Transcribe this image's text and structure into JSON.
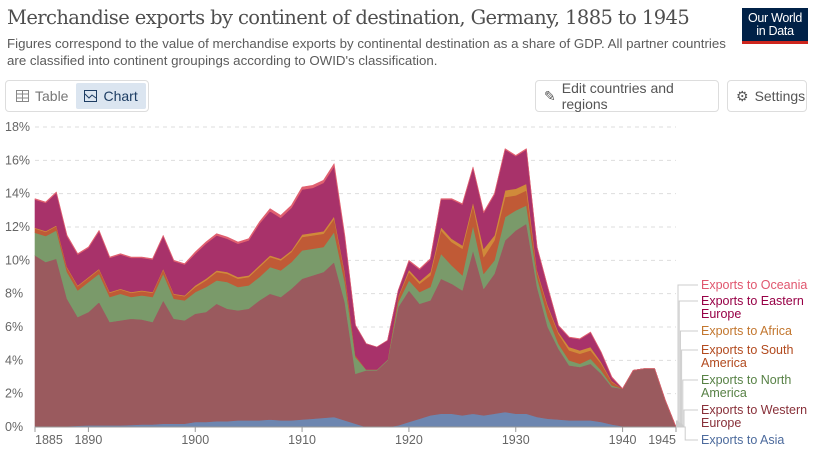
{
  "header": {
    "title": "Merchandise exports by continent of destination, Germany, 1885 to 1945",
    "subtitle": "Figures correspond to the value of merchandise exports by continental destination as a share of GDP. All partner countries are classified into continent groupings according to OWID's classification.",
    "logo_line1": "Our World",
    "logo_line2": "in Data"
  },
  "controls": {
    "table_label": "Table",
    "chart_label": "Chart",
    "edit_label": "Edit countries and regions",
    "settings_label": "Settings",
    "icons": [
      "table-icon",
      "chart-icon",
      "pencil-icon",
      "gear-icon"
    ]
  },
  "chart_data": {
    "type": "area",
    "stacked": true,
    "title": "Merchandise exports by continent of destination, Germany, 1885 to 1945",
    "xlim": [
      1885,
      1945
    ],
    "ylim": [
      0,
      18
    ],
    "x_ticks": [
      1885,
      1890,
      1900,
      1910,
      1920,
      1930,
      1940,
      1945
    ],
    "y_ticks": [
      "0%",
      "2%",
      "4%",
      "6%",
      "8%",
      "10%",
      "12%",
      "14%",
      "16%",
      "18%"
    ],
    "grid": true,
    "legend_placement": "right",
    "x_start": 1885,
    "series": [
      {
        "name": "Exports to Asia",
        "color": "#6d86b0",
        "label_color": "#4c6a9c",
        "values": [
          0.05,
          0.05,
          0.05,
          0.05,
          0.08,
          0.1,
          0.1,
          0.1,
          0.1,
          0.12,
          0.15,
          0.15,
          0.2,
          0.2,
          0.2,
          0.3,
          0.3,
          0.35,
          0.35,
          0.4,
          0.4,
          0.4,
          0.45,
          0.4,
          0.4,
          0.45,
          0.5,
          0.55,
          0.6,
          0.4,
          0.2,
          0,
          0,
          0,
          0.1,
          0.3,
          0.5,
          0.7,
          0.8,
          0.8,
          0.7,
          0.8,
          0.7,
          0.8,
          0.9,
          0.8,
          0.8,
          0.6,
          0.5,
          0.45,
          0.4,
          0.4,
          0.4,
          0.3,
          0.15,
          0.05,
          0.05,
          0.05,
          0.05,
          0.02,
          0
        ]
      },
      {
        "name": "Exports to Western Europe",
        "color": "#9a5a5e",
        "label_color": "#883039",
        "values": [
          10.25,
          9.85,
          10.05,
          7.65,
          6.52,
          6.8,
          7.4,
          6.2,
          6.3,
          6.38,
          6.3,
          6.15,
          7.4,
          6.3,
          6.2,
          6.5,
          6.6,
          7.05,
          6.75,
          6.6,
          6.7,
          7.2,
          7.55,
          7.4,
          7.9,
          8.45,
          8.6,
          8.75,
          9.3,
          7.1,
          3.0,
          3.4,
          3.4,
          4.0,
          7.1,
          7.9,
          6.9,
          6.9,
          8.1,
          7.8,
          7.5,
          9.8,
          7.6,
          8.4,
          10.3,
          11.0,
          11.4,
          7.8,
          5.5,
          4.25,
          3.3,
          3.2,
          3.4,
          2.9,
          2.25,
          2.25,
          3.35,
          3.45,
          3.45,
          1.58,
          0
        ]
      },
      {
        "name": "Exports to North America",
        "color": "#7a9a6a",
        "label_color": "#578145",
        "values": [
          1.36,
          1.56,
          1.7,
          1.6,
          1.6,
          1.8,
          1.7,
          1.5,
          1.6,
          1.3,
          1.45,
          1.5,
          1.6,
          1.2,
          1.2,
          1.3,
          1.5,
          1.4,
          1.6,
          1.4,
          1.4,
          1.4,
          1.6,
          1.6,
          1.6,
          1.7,
          1.6,
          1.5,
          1.8,
          1.2,
          1.0,
          0.05,
          0.05,
          0.05,
          0.3,
          0.6,
          0.7,
          0.8,
          1.5,
          1.1,
          0.9,
          1.5,
          0.9,
          0.8,
          1.4,
          1.2,
          1.1,
          0.6,
          0.6,
          0.3,
          0.3,
          0.2,
          0.3,
          0.2,
          0.1,
          0,
          0,
          0,
          0,
          0,
          0
        ]
      },
      {
        "name": "Exports to South America",
        "color": "#c05a36",
        "label_color": "#b24a1e",
        "values": [
          0.25,
          0.25,
          0.25,
          0.25,
          0.25,
          0.25,
          0.25,
          0.25,
          0.25,
          0.25,
          0.25,
          0.25,
          0.25,
          0.25,
          0.25,
          0.3,
          0.4,
          0.5,
          0.5,
          0.5,
          0.5,
          0.6,
          0.6,
          0.6,
          0.6,
          0.8,
          0.8,
          0.8,
          0.8,
          0.5,
          0.1,
          0,
          0,
          0,
          0.3,
          0.5,
          0.5,
          0.7,
          1.4,
          1.4,
          1.6,
          1.2,
          1.0,
          1.2,
          1.2,
          0.9,
          0.9,
          0.3,
          0.6,
          0.6,
          0.6,
          0.6,
          0.5,
          0.4,
          0.2,
          0,
          0,
          0,
          0,
          0,
          0
        ]
      },
      {
        "name": "Exports to Africa",
        "color": "#d08a3a",
        "label_color": "#c2762e",
        "values": [
          0.05,
          0.05,
          0.05,
          0.05,
          0.05,
          0.05,
          0.05,
          0.05,
          0.05,
          0.05,
          0.05,
          0.05,
          0.05,
          0.05,
          0.05,
          0.1,
          0.1,
          0.1,
          0.1,
          0.1,
          0.1,
          0.1,
          0.1,
          0.1,
          0.1,
          0.15,
          0.15,
          0.15,
          0.15,
          0.1,
          0,
          0,
          0,
          0,
          0.05,
          0.15,
          0.15,
          0.2,
          0.2,
          0.2,
          0.2,
          0.2,
          0.5,
          0.3,
          0.4,
          0.4,
          0.4,
          0.1,
          0.1,
          0.1,
          0.2,
          0.2,
          0.2,
          0.1,
          0.05,
          0,
          0,
          0,
          0,
          0,
          0
        ]
      },
      {
        "name": "Exports to Eastern Europe",
        "color": "#a8326a",
        "label_color": "#970046",
        "values": [
          1.69,
          1.69,
          1.95,
          1.85,
          1.85,
          1.75,
          2.25,
          2.05,
          2.05,
          2.05,
          1.95,
          1.95,
          1.95,
          1.95,
          1.85,
          1.9,
          2.1,
          2.1,
          2.0,
          2.0,
          2.1,
          2.5,
          2.65,
          2.45,
          2.55,
          2.7,
          2.7,
          2.9,
          3.0,
          2.1,
          1.8,
          1.55,
          1.35,
          1.15,
          0.35,
          0.5,
          0.7,
          0.75,
          1.65,
          2.35,
          2.45,
          2.05,
          2.15,
          2.45,
          2.45,
          1.95,
          2.05,
          1.37,
          1.07,
          0.37,
          0.57,
          0.67,
          0.87,
          0.57,
          0.22,
          0,
          0,
          0,
          0,
          0,
          0
        ]
      },
      {
        "name": "Exports to Oceania",
        "color": "#e06070",
        "label_color": "#e0566e",
        "values": [
          0.05,
          0.05,
          0.05,
          0.05,
          0.05,
          0.05,
          0.05,
          0.05,
          0.05,
          0.05,
          0.05,
          0.05,
          0.05,
          0.05,
          0.05,
          0.1,
          0.1,
          0.1,
          0.1,
          0.1,
          0.1,
          0.1,
          0.15,
          0.15,
          0.15,
          0.15,
          0.15,
          0.15,
          0.15,
          0.1,
          0,
          0,
          0,
          0,
          0,
          0.05,
          0.05,
          0.05,
          0.05,
          0.05,
          0.05,
          0.05,
          0.05,
          0.05,
          0.05,
          0.05,
          0.05,
          0.03,
          0.03,
          0.03,
          0.03,
          0.03,
          0.03,
          0.03,
          0.03,
          0,
          0,
          0,
          0,
          0,
          0
        ]
      }
    ],
    "legend_labels": {
      "oceania": "Exports to Oceania",
      "eastern_europe": [
        "Exports to Eastern",
        "Europe"
      ],
      "africa": "Exports to Africa",
      "south_america": [
        "Exports to South",
        "America"
      ],
      "north_america": [
        "Exports to North",
        "America"
      ],
      "western_europe": [
        "Exports to Western",
        "Europe"
      ],
      "asia": "Exports to Asia"
    }
  }
}
